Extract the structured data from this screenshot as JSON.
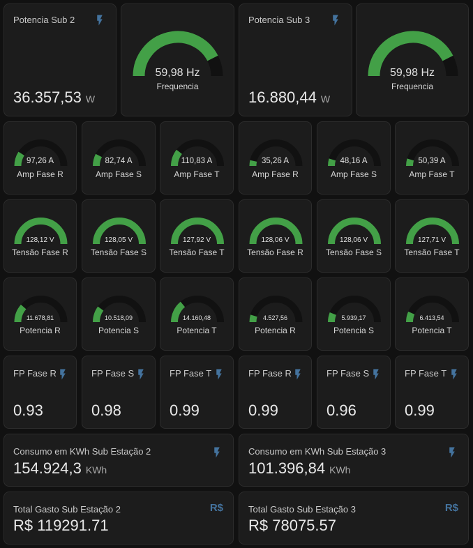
{
  "colors": {
    "gauge_fill": "#43a047",
    "gauge_track": "#111111",
    "icon": "#44739e"
  },
  "row1": {
    "sub2_power": {
      "name": "Potencia Sub 2",
      "value": "36.357,53",
      "unit": "W",
      "icon": "flash-icon"
    },
    "sub2_freq": {
      "value": "59,98 Hz",
      "label": "Frequencia",
      "level": 0.85
    },
    "sub3_power": {
      "name": "Potencia Sub 3",
      "value": "16.880,44",
      "unit": "W",
      "icon": "flash-icon"
    },
    "sub3_freq": {
      "value": "59,98 Hz",
      "label": "Frequencia",
      "level": 0.85
    }
  },
  "amp_gauges": [
    {
      "value": "97,26 A",
      "label": "Amp Fase R",
      "level": 0.18
    },
    {
      "value": "82,74 A",
      "label": "Amp Fase S",
      "level": 0.15
    },
    {
      "value": "110,83 A",
      "label": "Amp Fase T",
      "level": 0.21
    },
    {
      "value": "35,26 A",
      "label": "Amp Fase R",
      "level": 0.07
    },
    {
      "value": "48,16 A",
      "label": "Amp Fase S",
      "level": 0.09
    },
    {
      "value": "50,39 A",
      "label": "Amp Fase T",
      "level": 0.09
    }
  ],
  "voltage_gauges": [
    {
      "value": "128,12 V",
      "label": "Tensão Fase R",
      "level": 1.0
    },
    {
      "value": "128,05 V",
      "label": "Tensão Fase S",
      "level": 1.0
    },
    {
      "value": "127,92 V",
      "label": "Tensão Fase T",
      "level": 1.0
    },
    {
      "value": "128,06 V",
      "label": "Tensão Fase R",
      "level": 1.0
    },
    {
      "value": "128,06 V",
      "label": "Tensão Fase S",
      "level": 1.0
    },
    {
      "value": "127,71 V",
      "label": "Tensão Fase T",
      "level": 1.0
    }
  ],
  "power_gauges": [
    {
      "value": "11.678,81",
      "label": "Potencia R",
      "level": 0.23
    },
    {
      "value": "10.518,09",
      "label": "Potencia S",
      "level": 0.2
    },
    {
      "value": "14.160,48",
      "label": "Potencia T",
      "level": 0.28
    },
    {
      "value": "4.527,56",
      "label": "Potencia R",
      "level": 0.09
    },
    {
      "value": "5.939,17",
      "label": "Potencia S",
      "level": 0.12
    },
    {
      "value": "6.413,54",
      "label": "Potencia T",
      "level": 0.13
    }
  ],
  "fp": [
    {
      "name": "FP Fase R",
      "value": "0.93",
      "icon": "flash-icon"
    },
    {
      "name": "FP Fase S",
      "value": "0.98",
      "icon": "flash-icon"
    },
    {
      "name": "FP Fase T",
      "value": "0.99",
      "icon": "flash-icon"
    },
    {
      "name": "FP Fase R",
      "value": "0.99",
      "icon": "flash-icon"
    },
    {
      "name": "FP Fase S",
      "value": "0.96",
      "icon": "flash-icon"
    },
    {
      "name": "FP Fase T",
      "value": "0.99",
      "icon": "flash-icon"
    }
  ],
  "consumo": [
    {
      "name": "Consumo em KWh Sub Estação 2",
      "value": "154.924,3",
      "unit": "KWh",
      "icon": "flash-icon"
    },
    {
      "name": "Consumo em KWh Sub Estação 3",
      "value": "101.396,84",
      "unit": "KWh",
      "icon": "flash-icon"
    }
  ],
  "gasto": [
    {
      "name": "Total Gasto Sub Estação 2",
      "value": "R$ 119291.71",
      "icon_text": "R$"
    },
    {
      "name": "Total Gasto Sub Estação 3",
      "value": "R$ 78075.57",
      "icon_text": "R$"
    }
  ]
}
